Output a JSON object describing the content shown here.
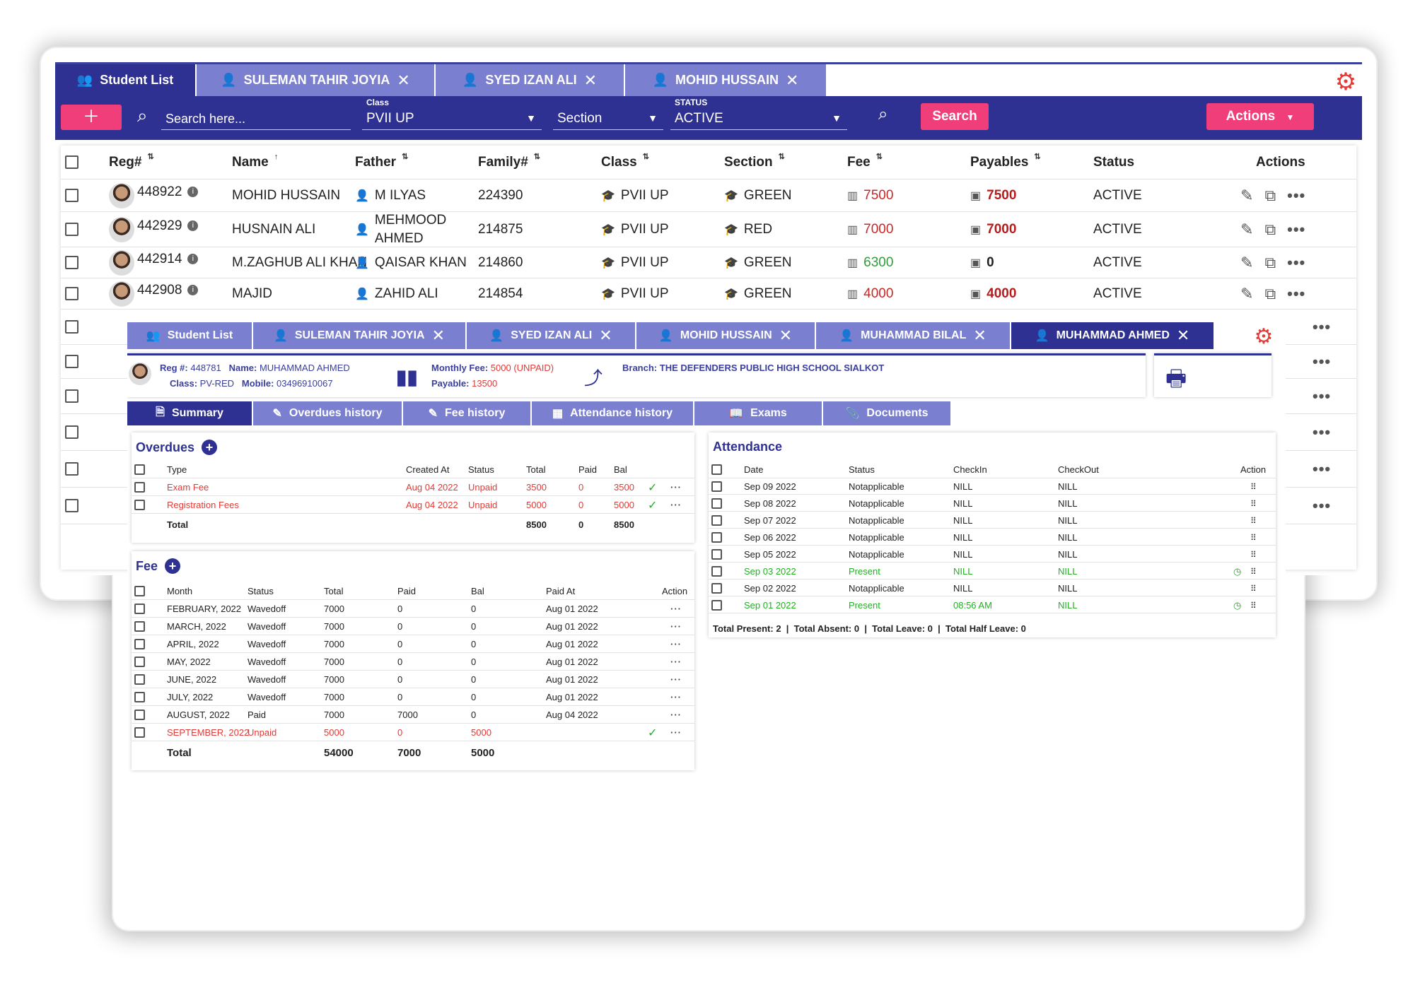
{
  "back": {
    "tabs": [
      {
        "label": "Student List",
        "icon": "users-icon",
        "active": true
      },
      {
        "label": "SULEMAN TAHIR JOYIA",
        "icon": "person-icon",
        "active": false
      },
      {
        "label": "SYED IZAN ALI",
        "icon": "person-icon",
        "active": false
      },
      {
        "label": "MOHID HUSSAIN",
        "icon": "person-icon",
        "active": false
      }
    ],
    "toolbar": {
      "search_placeholder": "Search here...",
      "class_label": "Class",
      "class_value": "PVII UP",
      "section_value": "Section",
      "status_label": "STATUS",
      "status_value": "ACTIVE",
      "search_button": "Search",
      "actions_button": "Actions"
    },
    "columns": [
      "Reg#",
      "Name",
      "Father",
      "Family#",
      "Class",
      "Section",
      "Fee",
      "Payables",
      "Status",
      "Actions"
    ],
    "rows": [
      {
        "reg": "448922",
        "name": "MOHID HUSSAIN",
        "father": "M ILYAS",
        "family": "224390",
        "class": "PVII UP",
        "section": "GREEN",
        "fee": "7500",
        "payable": "7500",
        "status": "ACTIVE"
      },
      {
        "reg": "442929",
        "name": "HUSNAIN ALI",
        "father": "MEHMOOD AHMED",
        "family": "214875",
        "class": "PVII UP",
        "section": "RED",
        "fee": "7000",
        "payable": "7000",
        "status": "ACTIVE"
      },
      {
        "reg": "442914",
        "name": "M.ZAGHUB ALI KHAN",
        "father": "QAISAR KHAN",
        "family": "214860",
        "class": "PVII UP",
        "section": "GREEN",
        "fee": "6300",
        "payable": "0",
        "status": "ACTIVE"
      },
      {
        "reg": "442908",
        "name": "MAJID",
        "father": "ZAHID ALI",
        "family": "214854",
        "class": "PVII UP",
        "section": "GREEN",
        "fee": "4000",
        "payable": "4000",
        "status": "ACTIVE"
      }
    ]
  },
  "front": {
    "tabs": [
      {
        "label": "Student List",
        "icon": "users-icon",
        "active": false
      },
      {
        "label": "SULEMAN TAHIR JOYIA",
        "icon": "person-icon",
        "active": false
      },
      {
        "label": "SYED IZAN ALI",
        "icon": "person-icon",
        "active": false
      },
      {
        "label": "MOHID HUSSAIN",
        "icon": "person-icon",
        "active": false
      },
      {
        "label": "MUHAMMAD BILAL",
        "icon": "person-icon",
        "active": false
      },
      {
        "label": "MUHAMMAD AHMED",
        "icon": "person-icon",
        "active": true
      }
    ],
    "student": {
      "reg_label": "Reg #:",
      "reg": "448781",
      "name_label": "Name:",
      "name": "MUHAMMAD AHMED",
      "class_label": "Class:",
      "class": "PV-RED",
      "mobile_label": "Mobile:",
      "mobile": "03496910067",
      "monthly_fee_label": "Monthly Fee:",
      "monthly_fee": "5000 (UNPAID)",
      "payable_label": "Payable:",
      "payable": "13500",
      "branch_label": "Branch:",
      "branch": "THE DEFENDERS PUBLIC HIGH SCHOOL SIALKOT"
    },
    "subtabs": [
      {
        "label": "Summary",
        "icon": "summary-icon",
        "active": true
      },
      {
        "label": "Overdues history",
        "icon": "edit-note-icon",
        "active": false
      },
      {
        "label": "Fee history",
        "icon": "edit-note-icon",
        "active": false
      },
      {
        "label": "Attendance history",
        "icon": "attendance-icon",
        "active": false
      },
      {
        "label": "Exams",
        "icon": "book-icon",
        "active": false
      },
      {
        "label": "Documents",
        "icon": "paperclip-icon",
        "active": false
      }
    ],
    "overdues": {
      "title": "Overdues",
      "columns": [
        "Type",
        "Created At",
        "Status",
        "Total",
        "Paid",
        "Bal"
      ],
      "rows": [
        {
          "type": "Exam Fee",
          "created": "Aug 04 2022",
          "status": "Unpaid",
          "total": "3500",
          "paid": "0",
          "bal": "3500"
        },
        {
          "type": "Registration Fees",
          "created": "Aug 04 2022",
          "status": "Unpaid",
          "total": "5000",
          "paid": "0",
          "bal": "5000"
        }
      ],
      "total_label": "Total",
      "total": "8500",
      "paid": "0",
      "bal": "8500"
    },
    "fee": {
      "title": "Fee",
      "columns": [
        "Month",
        "Status",
        "Total",
        "Paid",
        "Bal",
        "Paid At",
        "Action"
      ],
      "rows": [
        {
          "month": "FEBRUARY, 2022",
          "status": "Wavedoff",
          "total": "7000",
          "paid": "0",
          "bal": "0",
          "paid_at": "Aug 01 2022",
          "unpaid": false
        },
        {
          "month": "MARCH, 2022",
          "status": "Wavedoff",
          "total": "7000",
          "paid": "0",
          "bal": "0",
          "paid_at": "Aug 01 2022",
          "unpaid": false
        },
        {
          "month": "APRIL, 2022",
          "status": "Wavedoff",
          "total": "7000",
          "paid": "0",
          "bal": "0",
          "paid_at": "Aug 01 2022",
          "unpaid": false
        },
        {
          "month": "MAY, 2022",
          "status": "Wavedoff",
          "total": "7000",
          "paid": "0",
          "bal": "0",
          "paid_at": "Aug 01 2022",
          "unpaid": false
        },
        {
          "month": "JUNE, 2022",
          "status": "Wavedoff",
          "total": "7000",
          "paid": "0",
          "bal": "0",
          "paid_at": "Aug 01 2022",
          "unpaid": false
        },
        {
          "month": "JULY, 2022",
          "status": "Wavedoff",
          "total": "7000",
          "paid": "0",
          "bal": "0",
          "paid_at": "Aug 01 2022",
          "unpaid": false
        },
        {
          "month": "AUGUST, 2022",
          "status": "Paid",
          "total": "7000",
          "paid": "7000",
          "bal": "0",
          "paid_at": "Aug 04 2022",
          "unpaid": false
        },
        {
          "month": "SEPTEMBER, 2022",
          "status": "Unpaid",
          "total": "5000",
          "paid": "0",
          "bal": "5000",
          "paid_at": "",
          "unpaid": true
        }
      ],
      "total_label": "Total",
      "total": "54000",
      "paid": "7000",
      "bal": "5000"
    },
    "attendance": {
      "title": "Attendance",
      "columns": [
        "Date",
        "Status",
        "CheckIn",
        "CheckOut",
        "Action"
      ],
      "rows": [
        {
          "date": "Sep 09 2022",
          "status": "Notapplicable",
          "checkin": "NILL",
          "checkout": "NILL",
          "present": false
        },
        {
          "date": "Sep 08 2022",
          "status": "Notapplicable",
          "checkin": "NILL",
          "checkout": "NILL",
          "present": false
        },
        {
          "date": "Sep 07 2022",
          "status": "Notapplicable",
          "checkin": "NILL",
          "checkout": "NILL",
          "present": false
        },
        {
          "date": "Sep 06 2022",
          "status": "Notapplicable",
          "checkin": "NILL",
          "checkout": "NILL",
          "present": false
        },
        {
          "date": "Sep 05 2022",
          "status": "Notapplicable",
          "checkin": "NILL",
          "checkout": "NILL",
          "present": false
        },
        {
          "date": "Sep 03 2022",
          "status": "Present",
          "checkin": "NILL",
          "checkout": "NILL",
          "present": true
        },
        {
          "date": "Sep 02 2022",
          "status": "Notapplicable",
          "checkin": "NILL",
          "checkout": "NILL",
          "present": false
        },
        {
          "date": "Sep 01 2022",
          "status": "Present",
          "checkin": "08:56 AM",
          "checkout": "NILL",
          "present": true
        }
      ],
      "summary": "Total Present: 2  |  Total Absent: 0  |  Total Leave: 0  |  Total Half Leave: 0"
    }
  },
  "colors": {
    "primary": "#2e3192",
    "tab_inactive": "#7b7fd0",
    "accent_pink": "#f03e7a",
    "danger": "#e53935",
    "success": "#22b022"
  }
}
